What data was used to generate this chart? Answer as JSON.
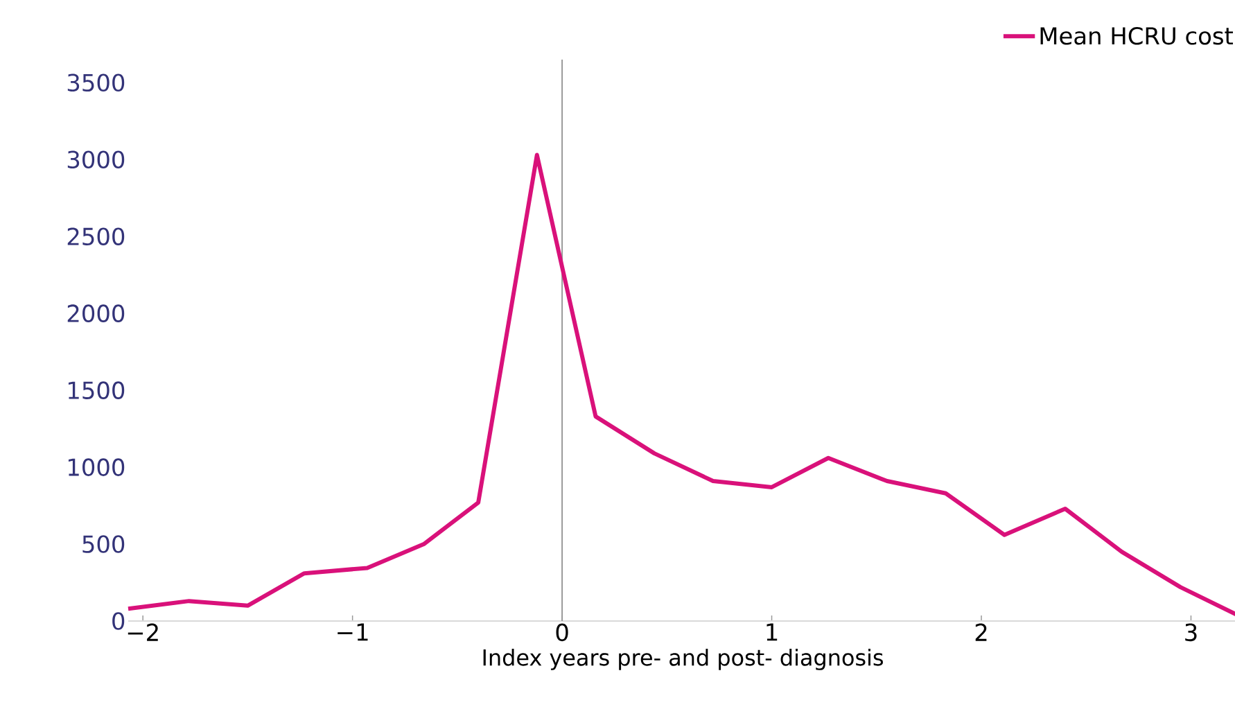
{
  "chart_data": {
    "type": "line",
    "xlabel": "Index years pre- and post- diagnosis",
    "x": [
      -2.07,
      -1.78,
      -1.5,
      -1.23,
      -0.93,
      -0.66,
      -0.4,
      -0.12,
      0.16,
      0.44,
      0.72,
      1.0,
      1.27,
      1.55,
      1.83,
      2.11,
      2.4,
      2.67,
      2.95,
      3.22
    ],
    "series": [
      {
        "name": "Mean HCRU cost",
        "color": "#d9117a",
        "values": [
          80,
          130,
          100,
          310,
          345,
          500,
          770,
          3030,
          1330,
          1090,
          910,
          870,
          1060,
          910,
          830,
          560,
          730,
          450,
          220,
          40
        ]
      }
    ],
    "xlim": [
      -2.07,
      3.22
    ],
    "ylim": [
      0,
      3650
    ],
    "xticks": [
      {
        "value": -2,
        "label": "−2"
      },
      {
        "value": -1,
        "label": "−1"
      },
      0,
      1,
      2,
      3
    ],
    "yticks": [
      0,
      500,
      1000,
      1500,
      2000,
      2500,
      3000,
      3500
    ],
    "ref_lines": [
      {
        "axis": "x",
        "value": 0,
        "color": "#999999"
      }
    ],
    "legend": "top right",
    "grid": false,
    "marker": "none",
    "line_style": "solid"
  }
}
